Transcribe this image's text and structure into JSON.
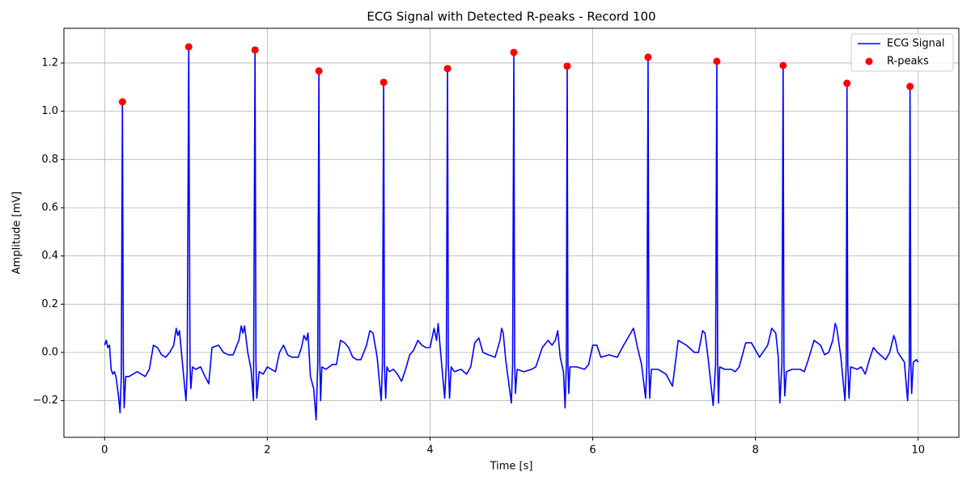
{
  "chart_data": {
    "type": "line",
    "title": "ECG Signal with Detected R-peaks - Record 100",
    "x_label": "Time [s]",
    "y_label": "Amplitude [mV]",
    "xlim": [
      -0.5,
      10.5
    ],
    "ylim": [
      -0.352,
      1.344
    ],
    "xticks": [
      0,
      2,
      4,
      6,
      8,
      10
    ],
    "yticks": [
      {
        "value": -0.2,
        "label": "−0.2"
      },
      {
        "value": 0,
        "label": "0.0"
      },
      0.2,
      0.4,
      0.6,
      0.8,
      {
        "value": 1,
        "label": "1.0"
      },
      1.2
    ],
    "grid": true,
    "legend": "upper right",
    "series": [
      {
        "name": "ECG Signal",
        "type": "line",
        "color": "#0000ff",
        "x": [
          0.0,
          0.02,
          0.04,
          0.06,
          0.08,
          0.1,
          0.12,
          0.14,
          0.17,
          0.19,
          0.205,
          0.219,
          0.23,
          0.24,
          0.26,
          0.3,
          0.35,
          0.4,
          0.45,
          0.5,
          0.55,
          0.6,
          0.65,
          0.7,
          0.75,
          0.8,
          0.85,
          0.88,
          0.9,
          0.92,
          0.95,
          1.0,
          1.015,
          1.034,
          1.05,
          1.06,
          1.08,
          1.12,
          1.18,
          1.22,
          1.28,
          1.32,
          1.4,
          1.46,
          1.52,
          1.58,
          1.65,
          1.68,
          1.7,
          1.72,
          1.76,
          1.8,
          1.83,
          1.849,
          1.86,
          1.87,
          1.9,
          1.95,
          2.0,
          2.05,
          2.1,
          2.15,
          2.2,
          2.25,
          2.3,
          2.38,
          2.42,
          2.45,
          2.48,
          2.5,
          2.53,
          2.57,
          2.6,
          2.62,
          2.634,
          2.645,
          2.655,
          2.67,
          2.72,
          2.8,
          2.85,
          2.9,
          2.95,
          3.0,
          3.05,
          3.1,
          3.15,
          3.22,
          3.26,
          3.3,
          3.35,
          3.4,
          3.415,
          3.43,
          3.44,
          3.455,
          3.47,
          3.5,
          3.55,
          3.6,
          3.65,
          3.7,
          3.75,
          3.8,
          3.85,
          3.9,
          3.95,
          4.0,
          4.05,
          4.08,
          4.1,
          4.13,
          4.18,
          4.2,
          4.215,
          4.225,
          4.24,
          4.26,
          4.3,
          4.38,
          4.45,
          4.5,
          4.55,
          4.6,
          4.65,
          4.72,
          4.8,
          4.86,
          4.88,
          4.9,
          4.93,
          5.0,
          5.015,
          5.03,
          5.04,
          5.05,
          5.07,
          5.15,
          5.25,
          5.3,
          5.38,
          5.45,
          5.5,
          5.54,
          5.57,
          5.6,
          5.64,
          5.66,
          5.675,
          5.686,
          5.695,
          5.705,
          5.72,
          5.8,
          5.9,
          5.95,
          6.0,
          6.05,
          6.1,
          6.2,
          6.3,
          6.38,
          6.5,
          6.52,
          6.55,
          6.6,
          6.65,
          6.665,
          6.68,
          6.69,
          6.7,
          6.72,
          6.8,
          6.9,
          6.98,
          7.05,
          7.15,
          7.25,
          7.3,
          7.35,
          7.38,
          7.42,
          7.48,
          7.51,
          7.525,
          7.535,
          7.545,
          7.56,
          7.62,
          7.7,
          7.75,
          7.8,
          7.88,
          7.95,
          8.0,
          8.05,
          8.15,
          8.2,
          8.25,
          8.28,
          8.3,
          8.325,
          8.34,
          8.35,
          8.36,
          8.38,
          8.45,
          8.55,
          8.6,
          8.65,
          8.72,
          8.8,
          8.85,
          8.9,
          8.95,
          8.98,
          9.0,
          9.05,
          9.1,
          9.115,
          9.125,
          9.135,
          9.15,
          9.17,
          9.25,
          9.3,
          9.35,
          9.4,
          9.45,
          9.5,
          9.6,
          9.65,
          9.7,
          9.72,
          9.75,
          9.83,
          9.87,
          9.89,
          9.9,
          9.91,
          9.92,
          9.94,
          9.98,
          10.0
        ],
        "values": [
          0.03,
          0.05,
          0.02,
          0.03,
          -0.07,
          -0.09,
          -0.08,
          -0.1,
          -0.18,
          -0.25,
          -0.1,
          1.039,
          -0.05,
          -0.23,
          -0.1,
          -0.1,
          -0.09,
          -0.08,
          -0.09,
          -0.1,
          -0.07,
          0.03,
          0.02,
          -0.01,
          -0.02,
          0.0,
          0.03,
          0.1,
          0.07,
          0.09,
          -0.02,
          -0.2,
          -0.08,
          1.267,
          -0.06,
          -0.15,
          -0.06,
          -0.07,
          -0.06,
          -0.09,
          -0.13,
          0.02,
          0.03,
          0.0,
          -0.01,
          -0.01,
          0.05,
          0.11,
          0.08,
          0.11,
          0.0,
          -0.07,
          -0.2,
          1.254,
          -0.03,
          -0.19,
          -0.08,
          -0.09,
          -0.06,
          -0.07,
          -0.08,
          0.0,
          0.03,
          -0.01,
          -0.02,
          -0.02,
          0.02,
          0.07,
          0.05,
          0.08,
          -0.1,
          -0.15,
          -0.28,
          -0.04,
          1.167,
          -0.04,
          -0.2,
          -0.06,
          -0.07,
          -0.05,
          -0.05,
          0.05,
          0.04,
          0.02,
          -0.02,
          -0.03,
          -0.03,
          0.03,
          0.09,
          0.08,
          -0.02,
          -0.2,
          -0.05,
          1.12,
          -0.05,
          -0.19,
          -0.06,
          -0.08,
          -0.07,
          -0.09,
          -0.12,
          -0.07,
          -0.01,
          0.01,
          0.05,
          0.03,
          0.02,
          0.02,
          0.1,
          0.05,
          0.12,
          0.0,
          -0.19,
          -0.05,
          1.177,
          -0.05,
          -0.19,
          -0.06,
          -0.08,
          -0.07,
          -0.09,
          -0.06,
          0.04,
          0.06,
          0.0,
          -0.01,
          -0.02,
          0.05,
          0.1,
          0.08,
          -0.03,
          -0.21,
          -0.05,
          1.244,
          -0.04,
          -0.17,
          -0.07,
          -0.08,
          -0.07,
          -0.06,
          0.02,
          0.05,
          0.03,
          0.05,
          0.09,
          -0.02,
          -0.08,
          -0.23,
          -0.05,
          1.187,
          -0.05,
          -0.17,
          -0.06,
          -0.06,
          -0.07,
          -0.05,
          0.03,
          0.03,
          -0.02,
          -0.01,
          -0.02,
          0.03,
          0.1,
          0.07,
          0.02,
          -0.05,
          -0.19,
          -0.05,
          1.224,
          -0.05,
          -0.19,
          -0.07,
          -0.07,
          -0.09,
          -0.14,
          0.05,
          0.03,
          0.0,
          0.0,
          0.09,
          0.08,
          -0.03,
          -0.22,
          -0.05,
          1.207,
          -0.05,
          -0.21,
          -0.06,
          -0.07,
          -0.07,
          -0.08,
          -0.06,
          0.04,
          0.04,
          0.01,
          -0.02,
          0.03,
          0.1,
          0.08,
          -0.02,
          -0.21,
          -0.05,
          1.19,
          -0.05,
          -0.18,
          -0.08,
          -0.07,
          -0.07,
          -0.08,
          -0.03,
          0.05,
          0.03,
          -0.01,
          0.0,
          0.05,
          0.12,
          0.1,
          -0.02,
          -0.2,
          -0.05,
          1.116,
          -0.05,
          -0.19,
          -0.06,
          -0.07,
          -0.06,
          -0.09,
          -0.03,
          0.02,
          0.0,
          -0.03,
          0.0,
          0.07,
          0.05,
          0.0,
          -0.04,
          -0.2,
          -0.05,
          1.103,
          -0.05,
          -0.17,
          -0.04,
          -0.03,
          -0.04
        ]
      },
      {
        "name": "R-peaks",
        "type": "scatter",
        "color": "#ff0000",
        "x": [
          0.219,
          1.034,
          1.849,
          2.634,
          3.43,
          4.215,
          5.03,
          5.686,
          6.68,
          7.525,
          8.34,
          9.125,
          9.9
        ],
        "values": [
          1.039,
          1.267,
          1.254,
          1.167,
          1.12,
          1.177,
          1.244,
          1.187,
          1.224,
          1.207,
          1.19,
          1.116,
          1.103
        ]
      }
    ]
  }
}
